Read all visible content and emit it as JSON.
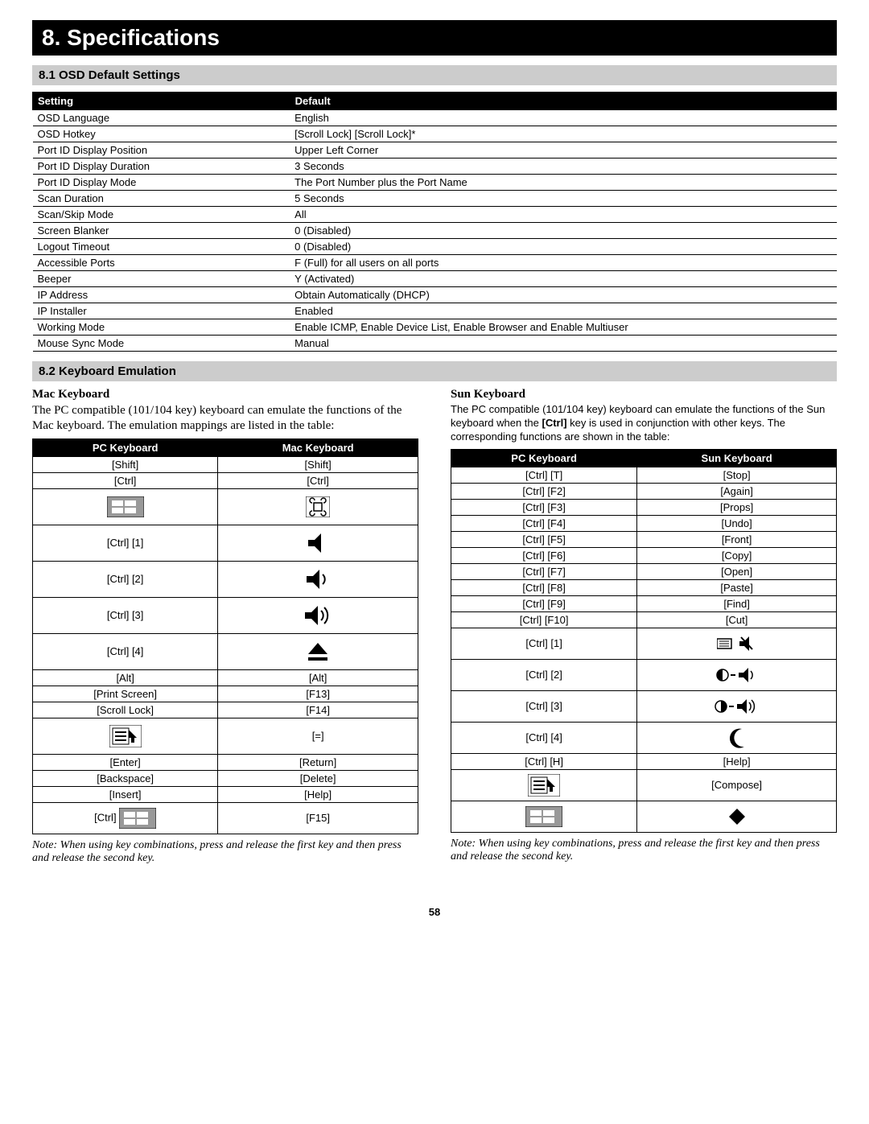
{
  "title": "8. Specifications",
  "section_81": "8.1 OSD Default Settings",
  "section_82": "8.2 Keyboard Emulation",
  "osd_table": {
    "headers": [
      "Setting",
      "Default"
    ],
    "rows": [
      [
        "OSD Language",
        "English"
      ],
      [
        "OSD Hotkey",
        "[Scroll Lock] [Scroll Lock]*"
      ],
      [
        "Port ID Display Position",
        "Upper Left Corner"
      ],
      [
        "Port ID Display Duration",
        "3 Seconds"
      ],
      [
        "Port ID Display Mode",
        "The Port Number plus the Port Name"
      ],
      [
        "Scan Duration",
        "5 Seconds"
      ],
      [
        "Scan/Skip Mode",
        "All"
      ],
      [
        "Screen Blanker",
        "0 (Disabled)"
      ],
      [
        "Logout Timeout",
        "0 (Disabled)"
      ],
      [
        "Accessible Ports",
        "F (Full) for all users on all ports"
      ],
      [
        "Beeper",
        "Y (Activated)"
      ],
      [
        "IP Address",
        "Obtain Automatically (DHCP)"
      ],
      [
        "IP Installer",
        "Enabled"
      ],
      [
        "Working Mode",
        "Enable ICMP, Enable Device List, Enable Browser and Enable Multiuser"
      ],
      [
        "Mouse Sync Mode",
        "Manual"
      ]
    ]
  },
  "mac": {
    "heading": "Mac Keyboard",
    "intro": "The PC compatible (101/104 key) keyboard can emulate the functions of the Mac keyboard. The emulation mappings are listed in the table:",
    "headers": [
      "PC Keyboard",
      "Mac Keyboard"
    ],
    "rows": [
      {
        "pc": "[Shift]",
        "mac": "[Shift]"
      },
      {
        "pc": "[Ctrl]",
        "mac": "[Ctrl]"
      },
      {
        "pc_icon": "win-key",
        "mac_icon": "cmd-key"
      },
      {
        "pc": "[Ctrl] [1]",
        "mac_icon": "mute"
      },
      {
        "pc": "[Ctrl] [2]",
        "mac_icon": "vol-down"
      },
      {
        "pc": "[Ctrl] [3]",
        "mac_icon": "vol-up"
      },
      {
        "pc": "[Ctrl] [4]",
        "mac_icon": "eject"
      },
      {
        "pc": "[Alt]",
        "mac": "[Alt]"
      },
      {
        "pc": "[Print Screen]",
        "mac": "[F13]"
      },
      {
        "pc": "[Scroll Lock]",
        "mac": "[F14]"
      },
      {
        "pc_icon": "menu-key",
        "mac": "[=]"
      },
      {
        "pc": "[Enter]",
        "mac": "[Return]"
      },
      {
        "pc": "[Backspace]",
        "mac": "[Delete]"
      },
      {
        "pc": "[Insert]",
        "mac": "[Help]"
      },
      {
        "pc_combo": "[Ctrl]",
        "pc_combo_icon": "win-key",
        "mac": "[F15]"
      }
    ],
    "note": "Note: When using key combinations, press and release the first key and then press and release the second key."
  },
  "sun": {
    "heading": "Sun Keyboard",
    "intro_pre": "The PC compatible (101/104 key) keyboard can emulate the functions of the Sun keyboard when the",
    "intro_bold": "[Ctrl]",
    "intro_post": " key is used in conjunction with other keys. The corresponding functions are shown in the table:",
    "headers": [
      "PC Keyboard",
      "Sun Keyboard"
    ],
    "rows": [
      {
        "pc": "[Ctrl] [T]",
        "sun": "[Stop]"
      },
      {
        "pc": "[Ctrl] [F2]",
        "sun": "[Again]"
      },
      {
        "pc": "[Ctrl] [F3]",
        "sun": "[Props]"
      },
      {
        "pc": "[Ctrl] [F4]",
        "sun": "[Undo]"
      },
      {
        "pc": "[Ctrl] [F5]",
        "sun": "[Front]"
      },
      {
        "pc": "[Ctrl] [F6]",
        "sun": "[Copy]"
      },
      {
        "pc": "[Ctrl] [F7]",
        "sun": "[Open]"
      },
      {
        "pc": "[Ctrl] [F8]",
        "sun": "[Paste]"
      },
      {
        "pc": "[Ctrl] [F9]",
        "sun": "[Find]"
      },
      {
        "pc": "[Ctrl] [F10]",
        "sun": "[Cut]"
      },
      {
        "pc": "[Ctrl] [1]",
        "sun_icon": "sun-mute"
      },
      {
        "pc": "[Ctrl] [2]",
        "sun_icon": "sun-voldown"
      },
      {
        "pc": "[Ctrl] [3]",
        "sun_icon": "sun-volup"
      },
      {
        "pc": "[Ctrl] [4]",
        "sun_icon": "moon"
      },
      {
        "pc": "[Ctrl] [H]",
        "sun": "[Help]"
      },
      {
        "pc_icon": "menu-key",
        "sun": "[Compose]"
      },
      {
        "pc_icon": "win-key",
        "sun_icon": "diamond"
      }
    ],
    "note": "Note: When using key combinations, press and release the first key and then press and release the second key."
  },
  "page_number": "58"
}
